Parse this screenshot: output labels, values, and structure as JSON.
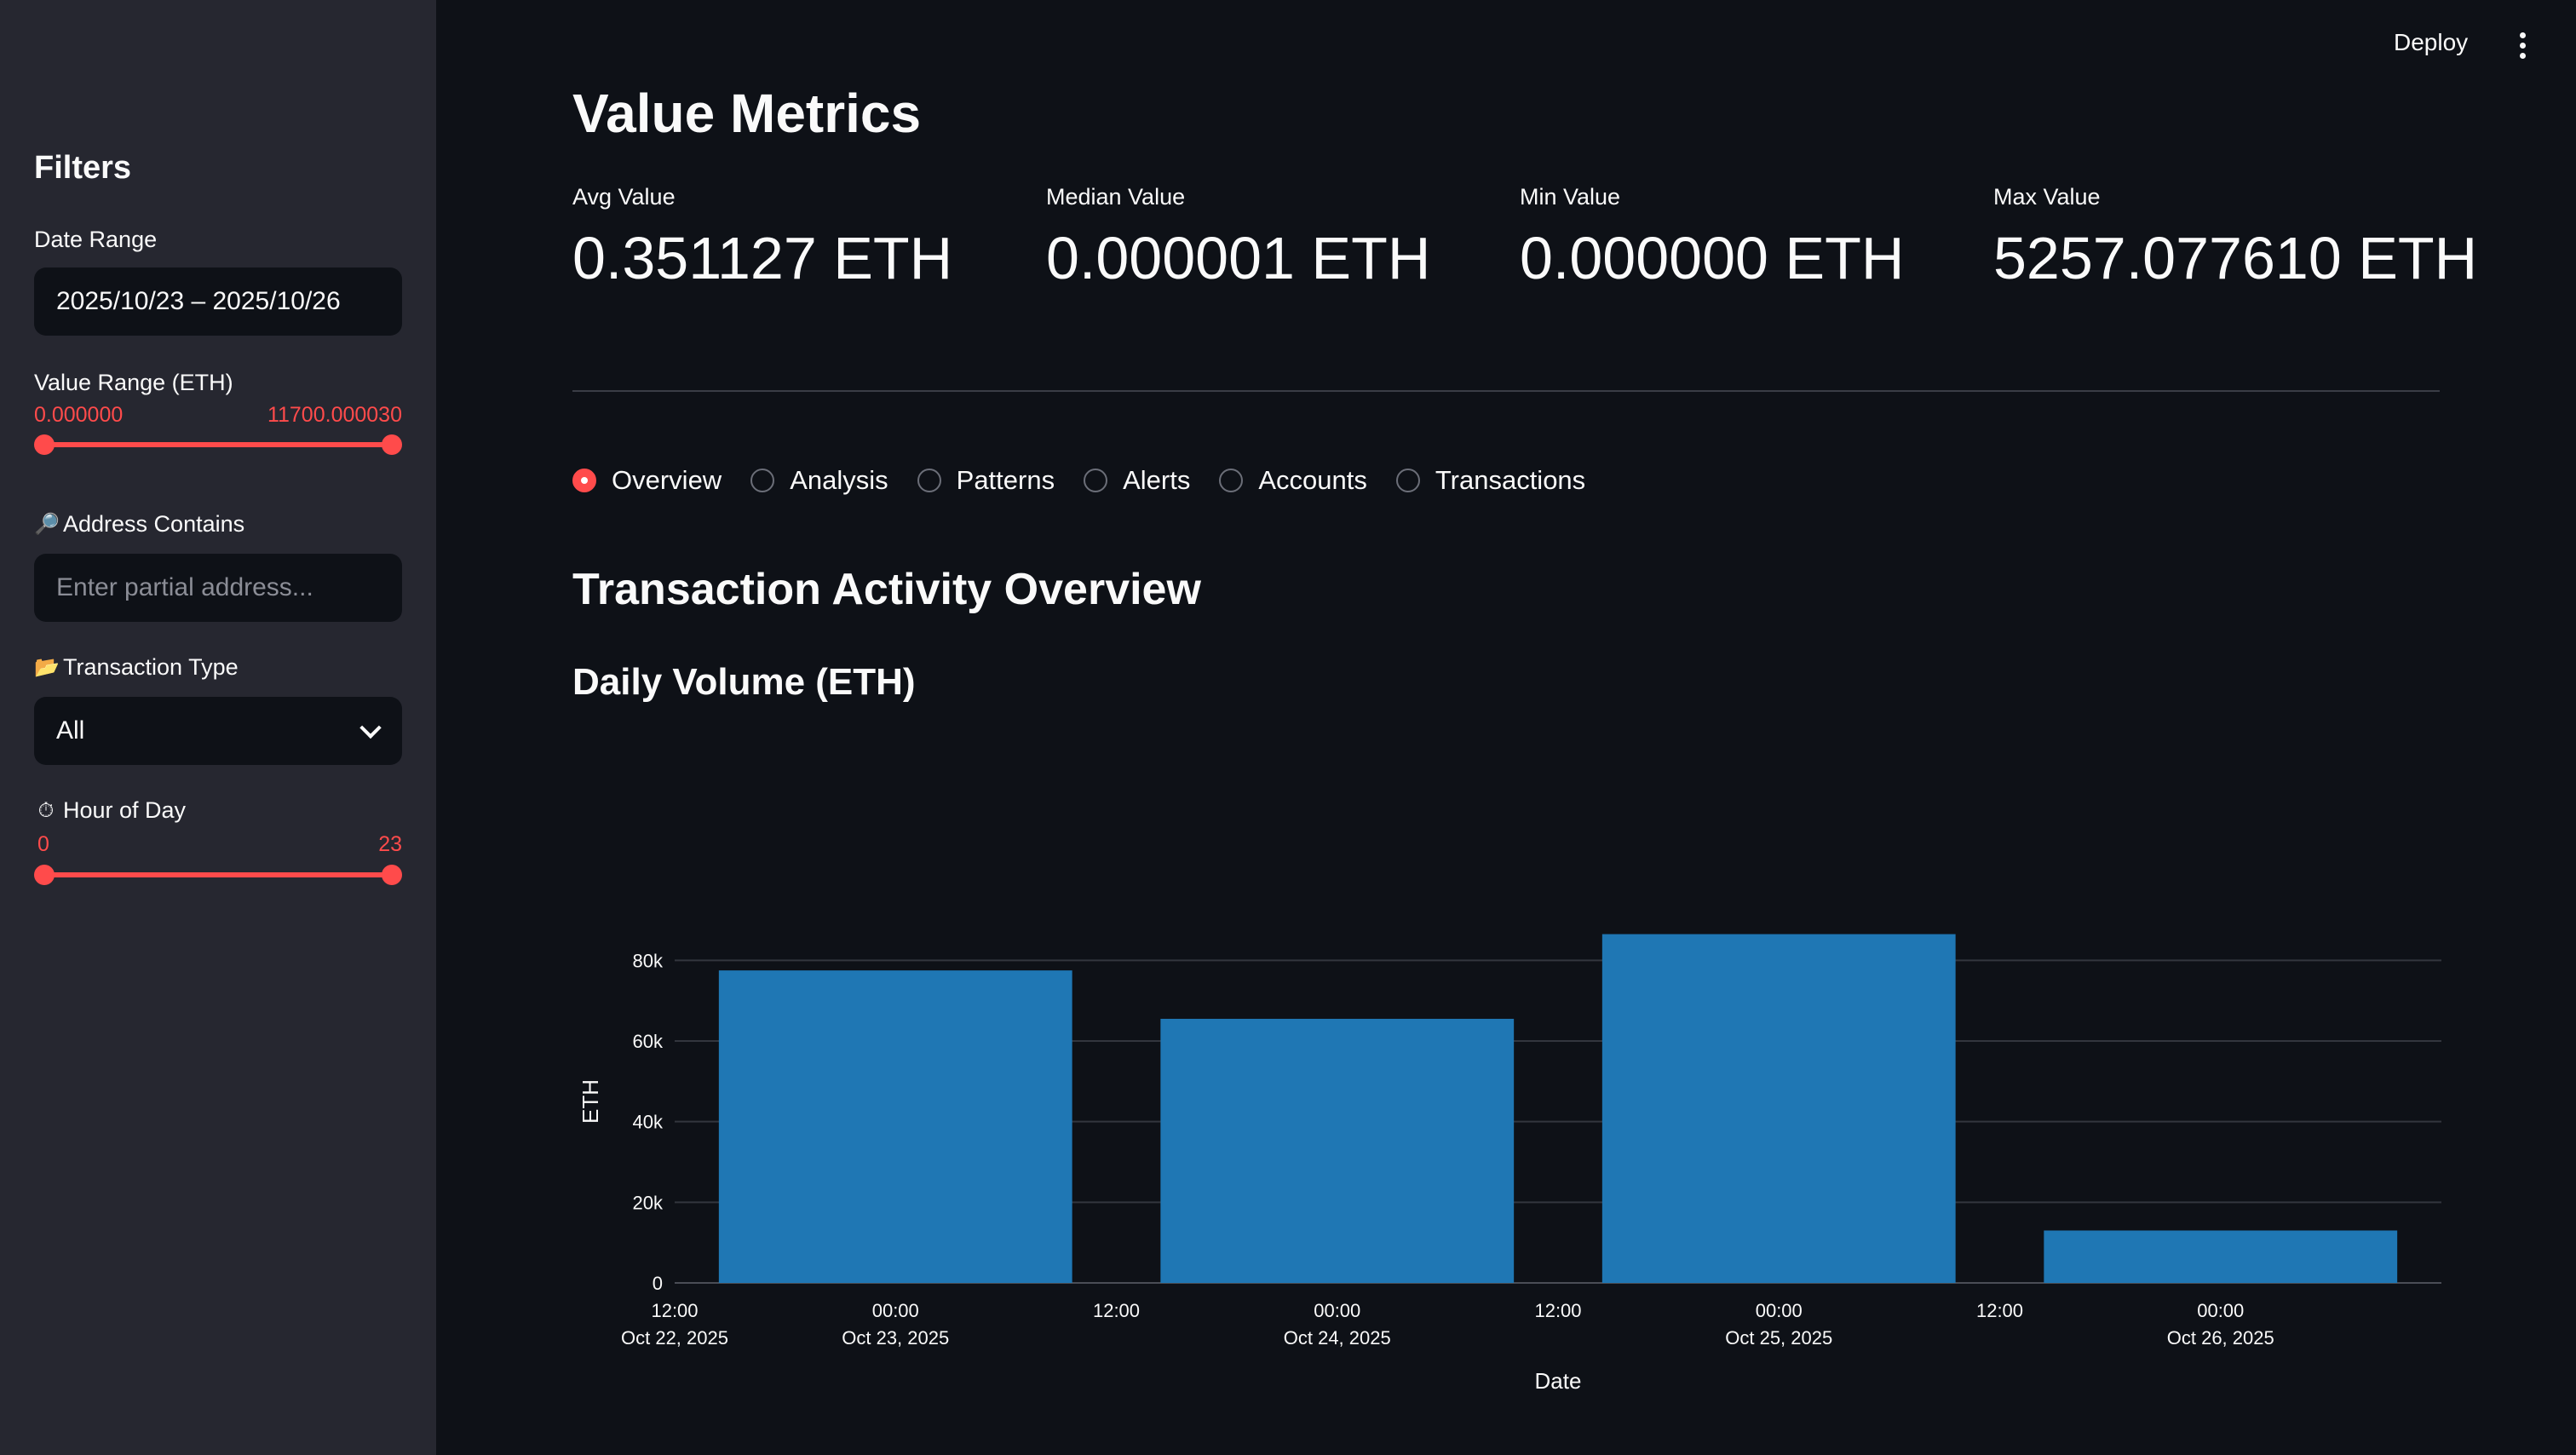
{
  "sidebar": {
    "title": "Filters",
    "date_range": {
      "label": "Date Range",
      "value": "2025/10/23 – 2025/10/26"
    },
    "value_range": {
      "label": "Value Range (ETH)",
      "min": "0.000000",
      "max": "11700.000030"
    },
    "address": {
      "icon": "magnifier-icon",
      "label": "Address Contains",
      "placeholder": "Enter partial address..."
    },
    "tx_type": {
      "icon": "folder-icon",
      "label": "Transaction Type",
      "value": "All"
    },
    "hour": {
      "icon": "stopwatch-icon",
      "label": "Hour of Day",
      "min": "0",
      "max": "23"
    }
  },
  "header": {
    "deploy": "Deploy"
  },
  "main": {
    "title": "Value Metrics",
    "metrics": [
      {
        "label": "Avg Value",
        "value": "0.351127 ETH"
      },
      {
        "label": "Median Value",
        "value": "0.000001 ETH"
      },
      {
        "label": "Min Value",
        "value": "0.000000 ETH"
      },
      {
        "label": "Max Value",
        "value": "5257.077610 ETH"
      }
    ],
    "tabs": [
      {
        "label": "Overview",
        "selected": true
      },
      {
        "label": "Analysis",
        "selected": false
      },
      {
        "label": "Patterns",
        "selected": false
      },
      {
        "label": "Alerts",
        "selected": false
      },
      {
        "label": "Accounts",
        "selected": false
      },
      {
        "label": "Transactions",
        "selected": false
      }
    ],
    "section_title": "Transaction Activity Overview",
    "chart_title": "Daily Volume (ETH)"
  },
  "chart_data": {
    "type": "bar",
    "categories": [
      "Oct 23, 2025",
      "Oct 24, 2025",
      "Oct 25, 2025",
      "Oct 26, 2025"
    ],
    "values": [
      77500,
      65500,
      86500,
      13000
    ],
    "xlabel": "Date",
    "ylabel": "ETH",
    "ylim": [
      0,
      90000
    ],
    "y_ticks": [
      "0",
      "20k",
      "40k",
      "60k",
      "80k"
    ],
    "x_ticks": [
      {
        "line1": "12:00",
        "line2": "Oct 22, 2025"
      },
      {
        "line1": "00:00",
        "line2": "Oct 23, 2025"
      },
      {
        "line1": "12:00",
        "line2": ""
      },
      {
        "line1": "00:00",
        "line2": "Oct 24, 2025"
      },
      {
        "line1": "12:00",
        "line2": ""
      },
      {
        "line1": "00:00",
        "line2": "Oct 25, 2025"
      },
      {
        "line1": "12:00",
        "line2": ""
      },
      {
        "line1": "00:00",
        "line2": "Oct 26, 2025"
      }
    ],
    "bar_color": "#1f77b4",
    "grid": true
  }
}
